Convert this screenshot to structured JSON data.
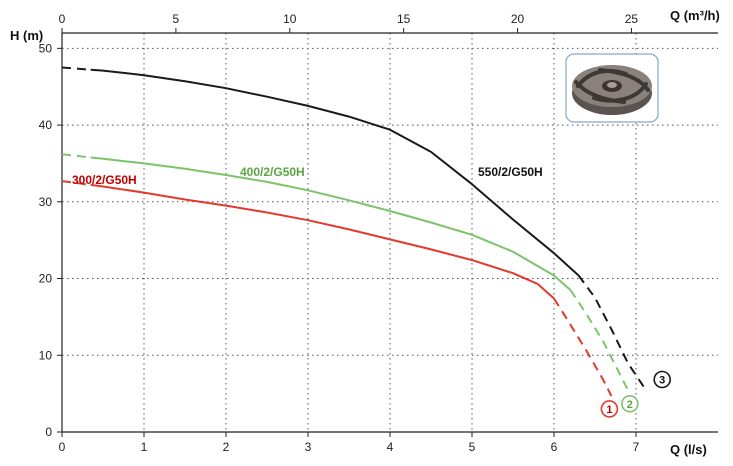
{
  "chart_data": {
    "type": "line",
    "title": "",
    "xlabel": "Q (l/s)",
    "ylabel": "H (m)",
    "x2label": "Q (m³/h)",
    "xlim": [
      0,
      8
    ],
    "ylim": [
      0,
      52
    ],
    "x2lim": [
      0,
      28.8
    ],
    "x_ticks": [
      "0",
      "1",
      "2",
      "3",
      "4",
      "5",
      "6",
      "7"
    ],
    "x2_ticks": [
      "0",
      "5",
      "10",
      "15",
      "20",
      "25"
    ],
    "y_ticks": [
      "0",
      "10",
      "20",
      "30",
      "40",
      "50"
    ],
    "grid": true,
    "series": [
      {
        "name": "300/2/G50H",
        "color": "#e23a2e",
        "label_color": "#c00000",
        "marker": "1",
        "x": [
          0,
          0.5,
          1,
          1.5,
          2,
          2.5,
          3,
          3.5,
          4,
          4.5,
          5,
          5.5,
          5.8,
          6.0,
          6.2,
          6.4,
          6.6,
          6.7
        ],
        "y": [
          32.7,
          32.0,
          31.2,
          30.3,
          29.5,
          28.6,
          27.6,
          26.4,
          25.1,
          23.8,
          22.4,
          20.7,
          19.3,
          17.4,
          14.0,
          10.5,
          6.8,
          4.7
        ]
      },
      {
        "name": "400/2/G50H",
        "color": "#7cc46a",
        "label_color": "#5aa540",
        "marker": "2",
        "x": [
          0,
          0.5,
          1,
          1.5,
          2,
          2.5,
          3,
          3.5,
          4,
          4.5,
          5,
          5.5,
          6.0,
          6.2,
          6.4,
          6.6,
          6.8,
          6.9
        ],
        "y": [
          36.2,
          35.6,
          35.0,
          34.3,
          33.5,
          32.6,
          31.5,
          30.2,
          28.8,
          27.3,
          25.7,
          23.5,
          20.4,
          18.5,
          15.3,
          11.8,
          7.6,
          5.5
        ]
      },
      {
        "name": "550/2/G50H",
        "color": "#1a1a1a",
        "label_color": "#111111",
        "marker": "3",
        "x": [
          0,
          0.5,
          1,
          1.5,
          2,
          2.5,
          3,
          3.5,
          4,
          4.5,
          5,
          5.5,
          6.0,
          6.3,
          6.5,
          6.7,
          6.9,
          7.1
        ],
        "y": [
          47.5,
          47.1,
          46.5,
          45.7,
          44.8,
          43.7,
          42.5,
          41.1,
          39.4,
          36.5,
          32.3,
          27.7,
          23.3,
          20.4,
          17.5,
          13.4,
          9.0,
          5.8
        ]
      }
    ],
    "dashed_ranges": {
      "start_until_x": 0.35,
      "end_from_x": [
        6.0,
        6.2,
        6.3
      ]
    },
    "inset_image": "impeller-photo"
  }
}
